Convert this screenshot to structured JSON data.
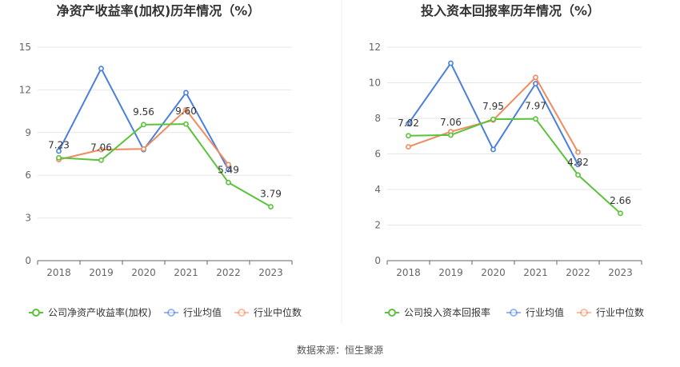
{
  "source_text": "数据来源：恒生聚源",
  "colors": {
    "company": "#5cc23b",
    "industry_avg": "#4a7fdc",
    "industry_median": "#ef8b5f",
    "grid": "#e6e6e6",
    "axis_text": "#666666",
    "title": "#333333"
  },
  "chart_data": [
    {
      "type": "line",
      "title": "净资产收益率(加权)历年情况（%）",
      "x": [
        "2018",
        "2019",
        "2020",
        "2021",
        "2022",
        "2023"
      ],
      "ylim": [
        0,
        15
      ],
      "yticks": [
        "0",
        "3",
        "6",
        "9",
        "12",
        "15"
      ],
      "grid": true,
      "legend_position": "bottom",
      "series": [
        {
          "name": "公司净资产收益率(加权)",
          "color_key": "company",
          "values": [
            7.23,
            7.06,
            9.56,
            9.6,
            5.49,
            3.79
          ],
          "labels": [
            "7.23",
            "7.06",
            "9.56",
            "9.60",
            "5.49",
            "3.79"
          ]
        },
        {
          "name": "行业均值",
          "color_key": "industry_avg",
          "values": [
            7.7,
            13.5,
            7.8,
            11.8,
            6.4,
            null
          ]
        },
        {
          "name": "行业中位数",
          "color_key": "industry_median",
          "values": [
            7.1,
            7.8,
            7.85,
            10.6,
            6.75,
            null
          ]
        }
      ]
    },
    {
      "type": "line",
      "title": "投入资本回报率历年情况（%）",
      "x": [
        "2018",
        "2019",
        "2020",
        "2021",
        "2022",
        "2023"
      ],
      "ylim": [
        0,
        12
      ],
      "yticks": [
        "0",
        "2",
        "4",
        "6",
        "8",
        "10",
        "12"
      ],
      "grid": true,
      "legend_position": "bottom",
      "series": [
        {
          "name": "公司投入资本回报率",
          "color_key": "company",
          "values": [
            7.02,
            7.06,
            7.95,
            7.97,
            4.82,
            2.66
          ],
          "labels": [
            "7.02",
            "7.06",
            "7.95",
            "7.97",
            "4.82",
            "2.66"
          ]
        },
        {
          "name": "行业均值",
          "color_key": "industry_avg",
          "values": [
            7.7,
            11.1,
            6.25,
            9.95,
            5.4,
            null
          ]
        },
        {
          "name": "行业中位数",
          "color_key": "industry_median",
          "values": [
            6.4,
            7.25,
            7.9,
            10.3,
            6.1,
            null
          ]
        }
      ]
    }
  ]
}
